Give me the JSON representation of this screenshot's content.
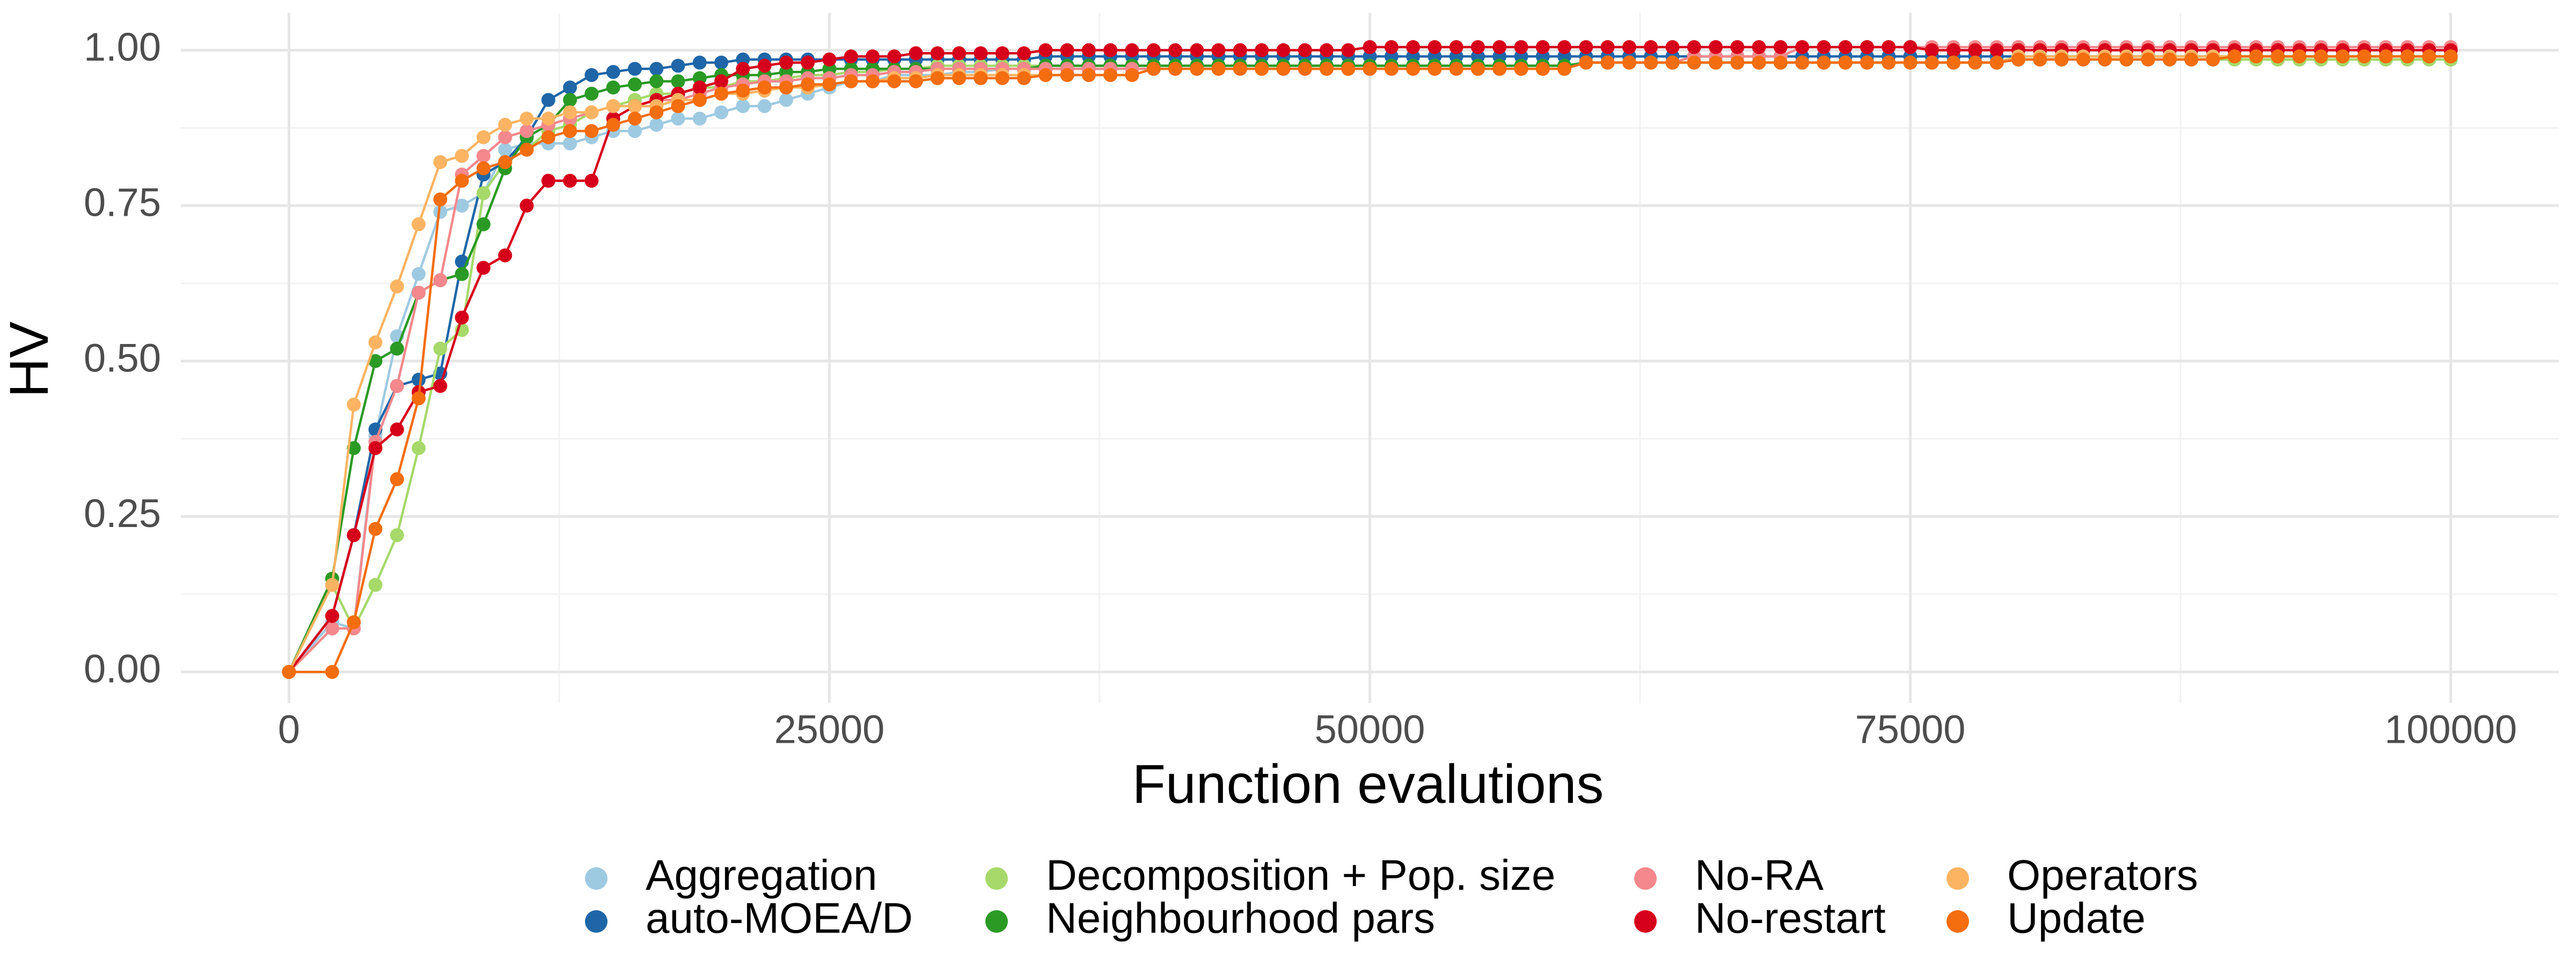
{
  "chart_data": {
    "type": "line",
    "x_label": "Function evalutions",
    "y_label": "HV",
    "xlim": [
      -5000,
      105000
    ],
    "ylim": [
      -0.05,
      1.06
    ],
    "xticks": [
      0,
      25000,
      50000,
      75000,
      100000
    ],
    "yticks": [
      {
        "value": 0,
        "label": "0.00"
      },
      {
        "value": 0.25,
        "label": "0.25"
      },
      {
        "value": 0.5,
        "label": "0.50"
      },
      {
        "value": 0.75,
        "label": "0.75"
      },
      {
        "value": 1,
        "label": "1.00"
      }
    ],
    "x_minor_ticks": [
      12500,
      37500,
      62500,
      87500
    ],
    "y_minor_ticks": [
      0.125,
      0.375,
      0.625,
      0.875
    ],
    "grid": true,
    "legend": "bottom",
    "x": [
      0,
      2000,
      3000,
      4000,
      5000,
      6000,
      7000,
      8000,
      9000,
      10000,
      11000,
      12000,
      13000,
      14000,
      15000,
      16000,
      17000,
      18000,
      19000,
      20000,
      21000,
      22000,
      23000,
      24000,
      25000,
      26000,
      27000,
      28000,
      29000,
      30000,
      31000,
      32000,
      33000,
      34000,
      35000,
      36000,
      37000,
      38000,
      39000,
      40000,
      41000,
      42000,
      43000,
      44000,
      45000,
      46000,
      47000,
      48000,
      49000,
      50000,
      51000,
      52000,
      53000,
      54000,
      55000,
      56000,
      57000,
      58000,
      59000,
      60000,
      61000,
      62000,
      63000,
      64000,
      65000,
      66000,
      67000,
      68000,
      69000,
      70000,
      71000,
      72000,
      73000,
      74000,
      75000,
      76000,
      77000,
      78000,
      79000,
      80000,
      81000,
      82000,
      83000,
      84000,
      85000,
      86000,
      87000,
      88000,
      89000,
      90000,
      91000,
      92000,
      93000,
      94000,
      95000,
      96000,
      97000,
      98000,
      99000,
      100000
    ],
    "series": [
      {
        "name": "Aggregation",
        "color": "#9ecae1",
        "values": [
          0,
          0.08,
          0.07,
          0.38,
          0.54,
          0.64,
          0.74,
          0.75,
          0.77,
          0.84,
          0.85,
          0.85,
          0.85,
          0.86,
          0.87,
          0.87,
          0.88,
          0.89,
          0.89,
          0.9,
          0.91,
          0.91,
          0.92,
          0.93,
          0.94,
          0.95,
          0.95,
          0.96,
          0.96,
          0.96,
          0.965,
          0.965,
          0.97,
          0.97,
          0.97,
          0.97,
          0.97,
          0.97,
          0.97,
          0.97,
          0.97,
          0.97,
          0.97,
          0.97,
          0.97,
          0.97,
          0.97,
          0.97,
          0.97,
          0.97,
          0.97,
          0.97,
          0.97,
          0.97,
          0.97,
          0.97,
          0.97,
          0.97,
          0.97,
          0.98,
          0.98,
          0.98,
          0.98,
          0.98,
          0.98,
          0.98,
          0.98,
          0.98,
          0.98,
          0.98,
          0.98,
          0.98,
          0.98,
          0.98,
          0.98,
          0.98,
          0.98,
          0.98,
          0.98,
          0.985,
          0.985,
          0.985,
          0.985,
          0.985,
          0.985,
          0.985,
          0.985,
          0.985,
          0.985,
          0.985,
          0.985,
          0.985,
          0.985,
          0.985,
          0.985,
          0.985,
          0.985,
          0.985,
          0.985,
          0.985
        ]
      },
      {
        "name": "auto-MOEA/D",
        "color": "#1f66a8",
        "values": [
          0,
          0.09,
          0.22,
          0.39,
          0.46,
          0.47,
          0.48,
          0.66,
          0.8,
          0.82,
          0.86,
          0.92,
          0.94,
          0.96,
          0.965,
          0.97,
          0.97,
          0.975,
          0.98,
          0.98,
          0.985,
          0.985,
          0.985,
          0.985,
          0.985,
          0.985,
          0.985,
          0.985,
          0.985,
          0.985,
          0.985,
          0.985,
          0.985,
          0.985,
          0.99,
          0.99,
          0.99,
          0.99,
          0.99,
          0.99,
          0.99,
          0.99,
          0.99,
          0.99,
          0.99,
          0.99,
          0.99,
          0.99,
          0.99,
          0.99,
          0.99,
          0.99,
          0.99,
          0.99,
          0.99,
          0.99,
          0.99,
          0.99,
          0.99,
          0.99,
          0.99,
          0.99,
          0.99,
          0.99,
          0.99,
          0.99,
          0.99,
          0.99,
          0.99,
          0.99,
          0.99,
          0.99,
          0.99,
          0.99,
          0.99,
          0.99,
          0.99,
          0.99,
          0.99,
          0.99,
          0.99,
          0.99,
          0.99,
          0.99,
          0.99,
          0.99,
          0.99,
          0.99,
          0.99,
          0.99,
          0.99,
          0.99,
          0.99,
          0.99,
          0.99,
          0.99,
          0.99,
          0.99,
          0.99,
          0.99
        ]
      },
      {
        "name": "Decomposition + Pop. size",
        "color": "#a6d96a",
        "values": [
          0,
          0.14,
          0.07,
          0.14,
          0.22,
          0.36,
          0.52,
          0.55,
          0.77,
          0.82,
          0.84,
          0.87,
          0.88,
          0.9,
          0.91,
          0.92,
          0.93,
          0.93,
          0.94,
          0.94,
          0.95,
          0.95,
          0.955,
          0.96,
          0.96,
          0.965,
          0.965,
          0.97,
          0.97,
          0.975,
          0.975,
          0.975,
          0.975,
          0.975,
          0.975,
          0.975,
          0.975,
          0.975,
          0.975,
          0.975,
          0.975,
          0.975,
          0.975,
          0.975,
          0.975,
          0.975,
          0.975,
          0.975,
          0.975,
          0.975,
          0.975,
          0.975,
          0.975,
          0.975,
          0.975,
          0.975,
          0.975,
          0.975,
          0.975,
          0.98,
          0.98,
          0.98,
          0.98,
          0.98,
          0.98,
          0.98,
          0.98,
          0.98,
          0.98,
          0.98,
          0.98,
          0.98,
          0.98,
          0.98,
          0.98,
          0.98,
          0.98,
          0.98,
          0.98,
          0.985,
          0.985,
          0.985,
          0.985,
          0.985,
          0.985,
          0.985,
          0.985,
          0.985,
          0.985,
          0.985,
          0.985,
          0.985,
          0.985,
          0.985,
          0.985,
          0.985,
          0.985,
          0.985,
          0.985,
          0.985
        ]
      },
      {
        "name": "Neighbourhood pars",
        "color": "#2a9a25",
        "values": [
          0,
          0.15,
          0.36,
          0.5,
          0.52,
          0.61,
          0.63,
          0.64,
          0.72,
          0.81,
          0.86,
          0.88,
          0.92,
          0.93,
          0.94,
          0.945,
          0.95,
          0.95,
          0.955,
          0.96,
          0.96,
          0.96,
          0.965,
          0.965,
          0.97,
          0.97,
          0.97,
          0.97,
          0.97,
          0.97,
          0.97,
          0.97,
          0.97,
          0.97,
          0.975,
          0.975,
          0.975,
          0.975,
          0.975,
          0.975,
          0.975,
          0.975,
          0.975,
          0.975,
          0.975,
          0.975,
          0.975,
          0.975,
          0.975,
          0.975,
          0.975,
          0.975,
          0.975,
          0.975,
          0.975,
          0.975,
          0.975,
          0.975,
          0.975,
          0.98,
          0.98,
          0.98,
          0.98,
          0.98,
          0.98,
          0.98,
          0.98,
          0.98,
          0.98,
          0.98,
          0.98,
          0.98,
          0.98,
          0.98,
          0.98,
          0.98,
          0.98,
          0.98,
          0.98,
          0.99,
          0.99,
          0.99,
          0.99,
          0.99,
          0.99,
          0.99,
          0.99,
          0.99,
          0.99,
          0.99,
          0.99,
          0.99,
          0.99,
          0.99,
          0.99,
          0.99,
          0.99,
          0.99,
          0.99,
          0.99
        ]
      },
      {
        "name": "No-RA",
        "color": "#f4888c",
        "values": [
          0,
          0.07,
          0.07,
          0.37,
          0.46,
          0.61,
          0.63,
          0.8,
          0.83,
          0.86,
          0.87,
          0.88,
          0.89,
          0.9,
          0.91,
          0.91,
          0.92,
          0.92,
          0.93,
          0.94,
          0.945,
          0.95,
          0.95,
          0.955,
          0.955,
          0.96,
          0.96,
          0.965,
          0.965,
          0.97,
          0.97,
          0.97,
          0.97,
          0.97,
          0.97,
          0.97,
          0.97,
          0.97,
          0.97,
          0.97,
          0.97,
          0.97,
          0.97,
          0.97,
          0.97,
          0.97,
          0.97,
          0.97,
          0.97,
          0.97,
          0.97,
          0.97,
          0.97,
          0.97,
          0.97,
          0.97,
          0.97,
          0.97,
          0.97,
          0.98,
          0.98,
          0.98,
          0.98,
          0.98,
          0.99,
          0.99,
          0.99,
          0.99,
          0.99,
          1.005,
          1.005,
          1.005,
          1.005,
          1.005,
          1.005,
          1.005,
          1.005,
          1.005,
          1.005,
          1.005,
          1.005,
          1.005,
          1.005,
          1.005,
          1.005,
          1.005,
          1.005,
          1.005,
          1.005,
          1.005,
          1.005,
          1.005,
          1.005,
          1.005,
          1.005,
          1.005,
          1.005,
          1.005,
          1.005,
          1.005
        ]
      },
      {
        "name": "No-restart",
        "color": "#d7001b",
        "values": [
          0,
          0.09,
          0.22,
          0.36,
          0.39,
          0.45,
          0.46,
          0.57,
          0.65,
          0.67,
          0.75,
          0.79,
          0.79,
          0.79,
          0.89,
          0.91,
          0.92,
          0.93,
          0.94,
          0.95,
          0.97,
          0.975,
          0.98,
          0.98,
          0.985,
          0.99,
          0.99,
          0.99,
          0.995,
          0.995,
          0.995,
          0.995,
          0.995,
          0.995,
          1,
          1,
          1,
          1,
          1,
          1,
          1,
          1,
          1,
          1,
          1,
          1,
          1,
          1,
          1,
          1.005,
          1.005,
          1.005,
          1.005,
          1.005,
          1.005,
          1.005,
          1.005,
          1.005,
          1.005,
          1.005,
          1.005,
          1.005,
          1.005,
          1.005,
          1.005,
          1.005,
          1.005,
          1.005,
          1.005,
          1.005,
          1.005,
          1.005,
          1.005,
          1.005,
          1.005,
          1,
          1,
          1,
          1,
          1,
          1,
          1,
          1,
          1,
          1,
          1,
          1,
          1,
          1,
          1,
          1,
          1,
          1,
          1,
          1,
          1,
          1,
          1,
          1,
          1
        ]
      },
      {
        "name": "Operators",
        "color": "#fdb462",
        "values": [
          0,
          0.14,
          0.43,
          0.53,
          0.62,
          0.72,
          0.82,
          0.83,
          0.86,
          0.88,
          0.89,
          0.89,
          0.9,
          0.9,
          0.91,
          0.91,
          0.91,
          0.92,
          0.92,
          0.93,
          0.93,
          0.935,
          0.94,
          0.94,
          0.945,
          0.95,
          0.95,
          0.955,
          0.955,
          0.96,
          0.96,
          0.96,
          0.96,
          0.96,
          0.96,
          0.96,
          0.96,
          0.96,
          0.96,
          0.97,
          0.97,
          0.97,
          0.97,
          0.97,
          0.97,
          0.97,
          0.97,
          0.97,
          0.97,
          0.97,
          0.97,
          0.97,
          0.97,
          0.97,
          0.97,
          0.97,
          0.97,
          0.97,
          0.97,
          0.98,
          0.98,
          0.98,
          0.98,
          0.98,
          0.98,
          0.98,
          0.98,
          0.98,
          0.98,
          0.98,
          0.98,
          0.98,
          0.98,
          0.98,
          0.98,
          0.98,
          0.98,
          0.98,
          0.98,
          0.99,
          0.99,
          0.99,
          0.99,
          0.99,
          0.99,
          0.99,
          0.99,
          0.99,
          0.99,
          0.99,
          0.99,
          0.99,
          0.99,
          0.99,
          0.99,
          0.99,
          0.99,
          0.99,
          0.99,
          0.99
        ]
      },
      {
        "name": "Update",
        "color": "#f46d0e",
        "values": [
          0,
          0,
          0.08,
          0.23,
          0.31,
          0.44,
          0.76,
          0.79,
          0.81,
          0.82,
          0.84,
          0.86,
          0.87,
          0.87,
          0.88,
          0.89,
          0.9,
          0.91,
          0.92,
          0.93,
          0.935,
          0.94,
          0.94,
          0.945,
          0.945,
          0.95,
          0.95,
          0.95,
          0.95,
          0.955,
          0.955,
          0.955,
          0.955,
          0.955,
          0.96,
          0.96,
          0.96,
          0.96,
          0.96,
          0.97,
          0.97,
          0.97,
          0.97,
          0.97,
          0.97,
          0.97,
          0.97,
          0.97,
          0.97,
          0.97,
          0.97,
          0.97,
          0.97,
          0.97,
          0.97,
          0.97,
          0.97,
          0.97,
          0.97,
          0.98,
          0.98,
          0.98,
          0.98,
          0.98,
          0.98,
          0.98,
          0.98,
          0.98,
          0.98,
          0.98,
          0.98,
          0.98,
          0.98,
          0.98,
          0.98,
          0.98,
          0.98,
          0.98,
          0.98,
          0.985,
          0.985,
          0.985,
          0.985,
          0.985,
          0.985,
          0.985,
          0.985,
          0.985,
          0.985,
          0.99,
          0.99,
          0.99,
          0.99,
          0.99,
          0.99,
          0.99,
          0.99,
          0.99,
          0.99,
          0.99
        ]
      }
    ]
  }
}
